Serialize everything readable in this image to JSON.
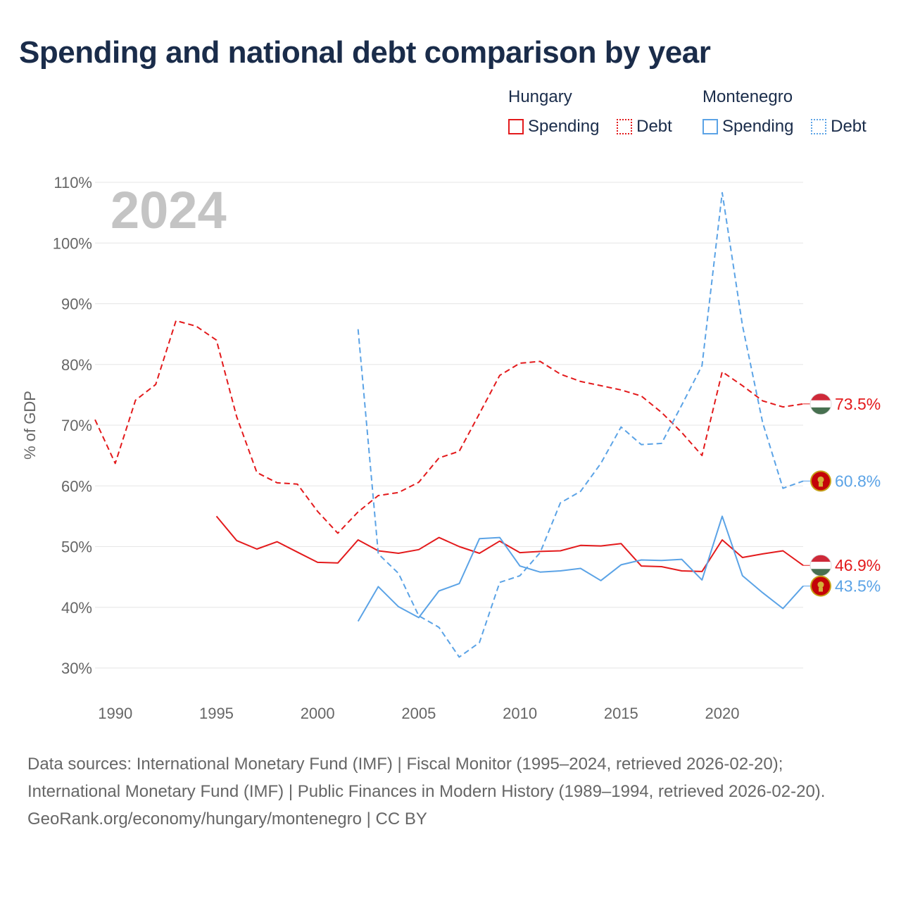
{
  "title": "Spending and national debt comparison by year",
  "legend": {
    "groups": [
      {
        "name": "Hungary",
        "color": "#e31a1c",
        "spending_label": "Spending",
        "debt_label": "Debt"
      },
      {
        "name": "Montenegro",
        "color": "#5ba3e6",
        "spending_label": "Spending",
        "debt_label": "Debt"
      }
    ]
  },
  "footer": {
    "sources": "Data sources: International Monetary Fund (IMF) | Fiscal Monitor (1995–2024, retrieved 2026-02-20); International Monetary Fund (IMF) | Public Finances in Modern History (1989–1994, retrieved 2026-02-20).",
    "credit": "GeoRank.org/economy/hungary/montenegro | CC BY"
  },
  "chart_data": {
    "type": "line",
    "title": "Spending and national debt comparison by year",
    "year_label": "2024",
    "ylabel": "% of GDP",
    "xlabel": "",
    "xlim": [
      1989,
      2024
    ],
    "ylim": [
      30,
      110
    ],
    "x_ticks": [
      "1990",
      "1995",
      "2000",
      "2005",
      "2010",
      "2015",
      "2020"
    ],
    "y_ticks": [
      "30%",
      "40%",
      "50%",
      "60%",
      "70%",
      "80%",
      "90%",
      "100%",
      "110%"
    ],
    "grid": true,
    "series": [
      {
        "name": "Hungary Debt",
        "country": "Hungary",
        "metric": "Debt",
        "color": "#e31a1c",
        "dash": true,
        "end_label": "73.5%",
        "x": [
          1989,
          1990,
          1991,
          1992,
          1993,
          1994,
          1995,
          1996,
          1997,
          1998,
          1999,
          2000,
          2001,
          2002,
          2003,
          2004,
          2005,
          2006,
          2007,
          2008,
          2009,
          2010,
          2011,
          2012,
          2013,
          2014,
          2015,
          2016,
          2017,
          2018,
          2019,
          2020,
          2021,
          2022,
          2023,
          2024
        ],
        "values": [
          70.9,
          63.7,
          74.1,
          76.7,
          87.2,
          86.3,
          84.0,
          71.4,
          62.2,
          60.5,
          60.3,
          55.8,
          52.2,
          55.7,
          58.4,
          58.9,
          60.6,
          64.6,
          65.7,
          71.9,
          78.2,
          80.2,
          80.5,
          78.4,
          77.2,
          76.5,
          75.8,
          74.8,
          72.1,
          68.8,
          65.0,
          78.8,
          76.5,
          74.0,
          73.0,
          73.5
        ]
      },
      {
        "name": "Hungary Spending",
        "country": "Hungary",
        "metric": "Spending",
        "color": "#e31a1c",
        "dash": false,
        "end_label": "46.9%",
        "x": [
          1995,
          1996,
          1997,
          1998,
          1999,
          2000,
          2001,
          2002,
          2003,
          2004,
          2005,
          2006,
          2007,
          2008,
          2009,
          2010,
          2011,
          2012,
          2013,
          2014,
          2015,
          2016,
          2017,
          2018,
          2019,
          2020,
          2021,
          2022,
          2023,
          2024
        ],
        "values": [
          55.0,
          51.0,
          49.6,
          50.8,
          49.1,
          47.4,
          47.3,
          51.1,
          49.3,
          48.9,
          49.5,
          51.5,
          50.0,
          48.9,
          50.9,
          49.0,
          49.2,
          49.3,
          50.2,
          50.1,
          50.5,
          46.8,
          46.7,
          46.0,
          45.9,
          51.1,
          48.2,
          48.8,
          49.3,
          46.9
        ]
      },
      {
        "name": "Montenegro Debt",
        "country": "Montenegro",
        "metric": "Debt",
        "color": "#5ba3e6",
        "dash": true,
        "end_label": "60.8%",
        "x": [
          2002,
          2003,
          2004,
          2005,
          2006,
          2007,
          2008,
          2009,
          2010,
          2011,
          2012,
          2013,
          2014,
          2015,
          2016,
          2017,
          2018,
          2019,
          2020,
          2021,
          2022,
          2023,
          2024
        ],
        "values": [
          85.8,
          48.8,
          45.6,
          38.6,
          36.7,
          31.8,
          34.2,
          44.1,
          45.2,
          49.0,
          57.2,
          59.1,
          63.7,
          69.7,
          66.8,
          67.0,
          73.3,
          79.8,
          108.3,
          86.4,
          70.4,
          59.6,
          60.8
        ]
      },
      {
        "name": "Montenegro Spending",
        "country": "Montenegro",
        "metric": "Spending",
        "color": "#5ba3e6",
        "dash": false,
        "end_label": "43.5%",
        "x": [
          2002,
          2003,
          2004,
          2005,
          2006,
          2007,
          2008,
          2009,
          2010,
          2011,
          2012,
          2013,
          2014,
          2015,
          2016,
          2017,
          2018,
          2019,
          2020,
          2021,
          2022,
          2023,
          2024
        ],
        "values": [
          37.7,
          43.4,
          40.1,
          38.3,
          42.7,
          43.9,
          51.3,
          51.5,
          46.8,
          45.8,
          46.0,
          46.4,
          44.4,
          47.0,
          47.8,
          47.7,
          47.9,
          44.5,
          55.0,
          45.2,
          42.4,
          39.8,
          43.5
        ]
      }
    ]
  }
}
